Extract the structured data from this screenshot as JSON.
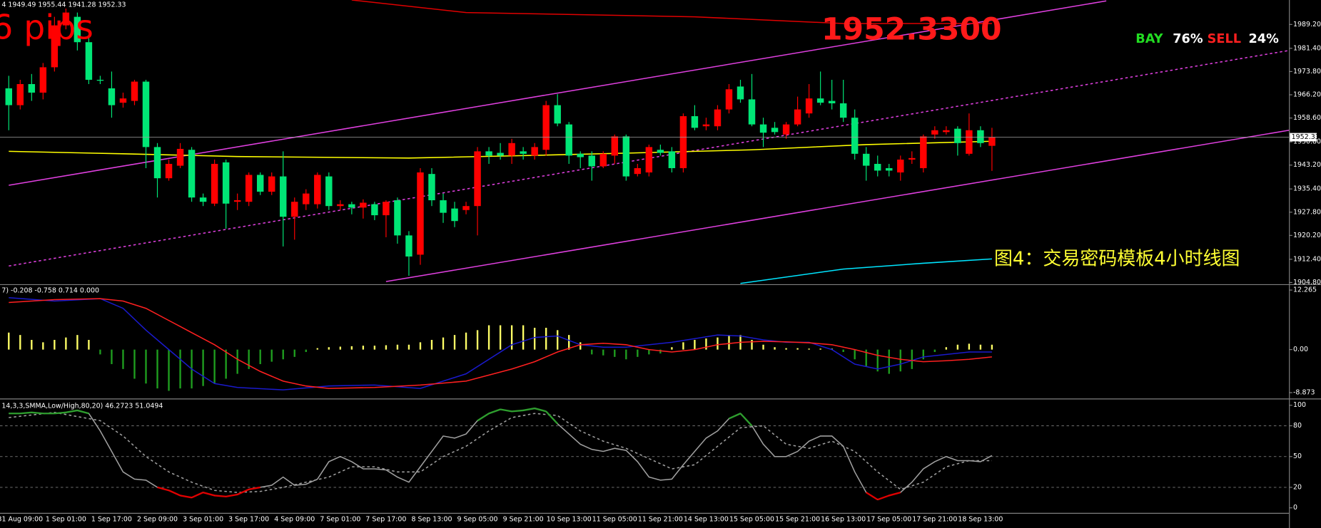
{
  "chart_data": [
    {
      "type": "candlestick",
      "header": "4 1949.49 1955.44 1941.28 1952.33",
      "pips": "6 pips",
      "price_banner": "1952.3300",
      "sentiment": {
        "buy_label": "BAY",
        "buy": "76%",
        "sell_label": "SELL",
        "sell": "24%"
      },
      "caption": "图4：交易密码模板4小时线图",
      "categories": [
        null,
        "31 Aug 09:00",
        null,
        null,
        null,
        "1 Sep 01:00",
        null,
        null,
        null,
        "1 Sep 17:00",
        null,
        null,
        null,
        "2 Sep 09:00",
        null,
        null,
        null,
        "3 Sep 01:00",
        null,
        null,
        null,
        "3 Sep 17:00",
        null,
        null,
        null,
        "4 Sep 09:00",
        null,
        null,
        null,
        "7 Sep 01:00",
        null,
        null,
        null,
        "7 Sep 17:00",
        null,
        null,
        null,
        "8 Sep 13:00",
        null,
        null,
        null,
        "9 Sep 05:00",
        null,
        null,
        null,
        "9 Sep 21:00",
        null,
        null,
        null,
        "10 Sep 13:00",
        null,
        null,
        null,
        "11 Sep 05:00",
        null,
        null,
        null,
        "11 Sep 21:00",
        null,
        null,
        null,
        "14 Sep 13:00",
        null,
        null,
        null,
        "15 Sep 05:00",
        null,
        null,
        null,
        "15 Sep 21:00",
        null,
        null,
        null,
        "16 Sep 13:00",
        null,
        null,
        null,
        "17 Sep 05:00",
        null,
        null,
        null,
        "17 Sep 21:00",
        null,
        null,
        null,
        "18 Sep 13:00",
        null
      ],
      "open": [
        1968.3,
        1962.8,
        1969.7,
        1966.9,
        1975.2,
        1988.9,
        1991.7,
        1983.4,
        1971.1,
        1968.3,
        1963.6,
        1964.2,
        1970.5,
        1949.1,
        1938.9,
        1943.0,
        1948.2,
        1932.6,
        1930.6,
        1944.1,
        1931.2,
        1931.2,
        1940.0,
        1934.5,
        1939.5,
        1926.3,
        1930.4,
        1930.4,
        1939.5,
        1929.8,
        1930.4,
        1929.3,
        1930.4,
        1926.8,
        1931.7,
        1920.2,
        1913.9,
        1940.3,
        1931.7,
        1929.0,
        1928.5,
        1929.8,
        1947.7,
        1947.2,
        1946.3,
        1947.7,
        1946.3,
        1948.2,
        1962.8,
        1956.5,
        1946.9,
        1946.3,
        1942.8,
        1946.3,
        1952.6,
        1940.3,
        1940.8,
        1948.2,
        1947.7,
        1942.2,
        1959.2,
        1955.9,
        1955.9,
        1961.4,
        1968.9,
        1964.7,
        1956.5,
        1955.4,
        1953.2,
        1956.5,
        1960.1,
        1965.0,
        1964.2,
        1963.4,
        1958.7,
        1946.9,
        1943.6,
        1942.2,
        1940.8,
        1945.0,
        1942.2,
        1953.2,
        1954.0,
        1955.1,
        1946.9,
        1954.6,
        1949.5
      ],
      "high": [
        1972.4,
        1971.1,
        1973.0,
        1976.6,
        1991.7,
        1994.4,
        1993.1,
        1984.8,
        1972.4,
        1973.8,
        1966.9,
        1971.1,
        1971.1,
        1950.4,
        1945.0,
        1950.4,
        1949.1,
        1933.9,
        1945.0,
        1945.0,
        1933.9,
        1940.8,
        1940.8,
        1940.8,
        1947.7,
        1932.6,
        1935.3,
        1940.8,
        1940.8,
        1931.7,
        1931.2,
        1932.0,
        1931.2,
        1931.7,
        1932.6,
        1921.6,
        1942.2,
        1942.2,
        1933.9,
        1931.2,
        1931.2,
        1949.1,
        1949.1,
        1950.4,
        1951.8,
        1949.1,
        1950.4,
        1964.2,
        1966.4,
        1957.3,
        1947.7,
        1947.7,
        1947.7,
        1953.2,
        1953.2,
        1943.6,
        1949.9,
        1949.9,
        1949.1,
        1960.1,
        1962.8,
        1958.7,
        1962.8,
        1969.7,
        1971.1,
        1973.0,
        1958.7,
        1957.3,
        1957.3,
        1965.6,
        1969.7,
        1973.8,
        1971.1,
        1971.1,
        1961.4,
        1949.1,
        1946.3,
        1943.6,
        1946.3,
        1947.7,
        1953.2,
        1955.9,
        1955.9,
        1955.9,
        1960.1,
        1955.9,
        1955.4
      ],
      "low": [
        1954.6,
        1961.4,
        1964.2,
        1964.7,
        1973.8,
        1987.6,
        1980.7,
        1969.7,
        1969.7,
        1958.7,
        1962.0,
        1962.8,
        1942.2,
        1932.6,
        1938.1,
        1942.2,
        1931.2,
        1929.8,
        1929.8,
        1922.4,
        1928.5,
        1929.8,
        1933.4,
        1933.4,
        1916.6,
        1918.8,
        1928.5,
        1929.0,
        1928.5,
        1928.5,
        1927.1,
        1925.7,
        1925.2,
        1919.6,
        1917.5,
        1907.0,
        1910.6,
        1929.8,
        1924.3,
        1922.9,
        1927.1,
        1920.2,
        1943.6,
        1945.0,
        1943.6,
        1945.0,
        1945.0,
        1946.3,
        1955.9,
        1943.6,
        1942.2,
        1938.1,
        1942.2,
        1943.6,
        1938.1,
        1939.5,
        1939.5,
        1946.3,
        1940.8,
        1940.8,
        1954.6,
        1954.6,
        1954.6,
        1960.1,
        1963.6,
        1955.9,
        1949.1,
        1953.2,
        1951.8,
        1955.9,
        1958.7,
        1962.8,
        1961.4,
        1957.3,
        1945.0,
        1938.1,
        1939.5,
        1939.5,
        1938.1,
        1943.6,
        1940.8,
        1951.8,
        1953.2,
        1946.3,
        1946.3,
        1949.1,
        1941.3
      ],
      "close": [
        1962.8,
        1969.7,
        1966.9,
        1975.2,
        1988.9,
        1993.1,
        1983.4,
        1971.1,
        1970.8,
        1962.8,
        1965.0,
        1970.5,
        1949.1,
        1938.9,
        1943.6,
        1948.5,
        1932.6,
        1931.2,
        1943.6,
        1930.6,
        1931.7,
        1940.0,
        1934.5,
        1939.5,
        1926.3,
        1931.2,
        1933.9,
        1940.0,
        1929.8,
        1930.4,
        1929.3,
        1930.9,
        1926.8,
        1931.2,
        1920.2,
        1913.3,
        1940.8,
        1931.7,
        1927.6,
        1924.9,
        1929.8,
        1947.7,
        1946.3,
        1946.3,
        1950.4,
        1946.9,
        1949.1,
        1962.8,
        1956.8,
        1946.3,
        1945.8,
        1942.8,
        1946.9,
        1952.6,
        1939.5,
        1942.2,
        1949.1,
        1947.2,
        1942.2,
        1959.2,
        1955.4,
        1956.5,
        1961.4,
        1968.0,
        1964.7,
        1956.5,
        1953.8,
        1954.0,
        1956.5,
        1961.4,
        1965.0,
        1963.6,
        1963.4,
        1958.7,
        1946.9,
        1943.0,
        1941.4,
        1941.4,
        1945.0,
        1945.5,
        1952.6,
        1954.6,
        1954.6,
        1950.4,
        1954.6,
        1950.4,
        1952.3
      ],
      "up_color": "#ff0000",
      "down_color": "#00e676",
      "ylim": [
        1904.25,
        1997.2
      ],
      "yticks": [
        {
          "value": 1904.8,
          "label": "1904.80"
        },
        {
          "value": 1912.4,
          "label": "1912.40"
        },
        {
          "value": 1920.2,
          "label": "1920.20"
        },
        {
          "value": 1927.8,
          "label": "1927.80"
        },
        {
          "value": 1935.4,
          "label": "1935.40"
        },
        {
          "value": 1943.2,
          "label": "1943.20"
        },
        {
          "value": 1950.8,
          "label": "1950.80"
        },
        {
          "value": 1958.6,
          "label": "1958.60"
        },
        {
          "value": 1966.2,
          "label": "1966.20"
        },
        {
          "value": 1973.8,
          "label": "1973.80"
        },
        {
          "value": 1981.4,
          "label": "1981.40"
        },
        {
          "value": 1989.2,
          "label": "1989.20"
        }
      ],
      "last_price": 1952.33,
      "lines": [
        {
          "x": [
            0,
            96
          ],
          "values": [
            1936.6,
            1996.9
          ],
          "color": "#e040e0",
          "style": "solid"
        },
        {
          "x": [
            33,
            112
          ],
          "values": [
            1905.1,
            1954.6
          ],
          "color": "#e040e0",
          "style": "solid"
        },
        {
          "x": [
            0,
            112
          ],
          "values": [
            1910.2,
            1980.7
          ],
          "color": "#e040e0",
          "style": "dashed"
        },
        {
          "x": [
            0,
            10,
            20,
            35,
            45,
            55,
            65,
            75,
            86
          ],
          "values": [
            1947.7,
            1946.9,
            1946.0,
            1945.5,
            1946.3,
            1947.2,
            1948.2,
            1949.9,
            1951.0
          ],
          "color": "#ffff00",
          "style": "solid"
        },
        {
          "x": [
            30,
            40,
            60,
            73,
            86
          ],
          "values": [
            1997.2,
            1993.1,
            1991.7,
            1989.5,
            1989.5
          ],
          "color": "#e00000",
          "style": "solid"
        },
        {
          "x": [
            64,
            73,
            80,
            86
          ],
          "values": [
            1904.5,
            1909.2,
            1911.1,
            1912.5
          ],
          "color": "#00e5ff",
          "style": "solid"
        }
      ]
    },
    {
      "type": "macd",
      "header": "7) -0.208 -0.758 0.714 0.000",
      "histogram": [
        3.5,
        3,
        2,
        1.5,
        2,
        2.5,
        3,
        2,
        -1,
        -3,
        -4,
        -6,
        -7,
        -8,
        -8.5,
        -8,
        -8,
        -7.5,
        -7,
        -6,
        -5,
        -4,
        -3,
        -2.5,
        -2,
        -1.5,
        -0.5,
        0.3,
        0.5,
        0.6,
        0.7,
        0.8,
        0.8,
        0.9,
        1,
        1,
        1.5,
        2,
        2.5,
        3,
        3.5,
        4,
        5,
        5,
        5,
        5,
        4.5,
        4.5,
        4,
        3,
        1.5,
        -1,
        -1.2,
        -1.5,
        -2,
        -1.5,
        -1,
        -0.8,
        0.5,
        1.5,
        2,
        2.3,
        2.5,
        3,
        3,
        2,
        1,
        0.5,
        0.3,
        0.3,
        0.2,
        0.2,
        0.2,
        -0.5,
        -2,
        -3.5,
        -4.5,
        -5,
        -4.5,
        -4,
        -2,
        -0.5,
        0.5,
        1,
        1.2,
        1,
        1
      ],
      "pos_color": "#ffff66",
      "neg_color": "#1f9e1f",
      "lines": [
        {
          "x": [
            0,
            4,
            8,
            10,
            12,
            14,
            16,
            18,
            20,
            24,
            28,
            32,
            36,
            40,
            44,
            46,
            48,
            50,
            52,
            54,
            58,
            62,
            64,
            66,
            68,
            70,
            72,
            74,
            76,
            78,
            80,
            84,
            86
          ],
          "values": [
            10.7,
            10.0,
            10.5,
            8.5,
            4,
            0,
            -4,
            -7,
            -7.8,
            -8.3,
            -7.5,
            -7.3,
            -8,
            -5,
            1,
            2.5,
            2.8,
            1.0,
            0.5,
            0.5,
            1.5,
            3,
            2.8,
            2,
            1.5,
            1.5,
            0,
            -3,
            -4,
            -3,
            -1.5,
            -0.5,
            -0.5
          ],
          "color": "#1a1acc",
          "style": "solid"
        },
        {
          "x": [
            0,
            4,
            8,
            10,
            12,
            14,
            16,
            18,
            20,
            22,
            24,
            26,
            28,
            32,
            36,
            40,
            44,
            46,
            48,
            50,
            52,
            54,
            56,
            58,
            60,
            62,
            64,
            66,
            68,
            70,
            72,
            74,
            76,
            78,
            80,
            82,
            84,
            86
          ],
          "values": [
            9.7,
            10.3,
            10.5,
            10.0,
            8.5,
            6,
            3.5,
            1,
            -2,
            -4.5,
            -6.5,
            -7.5,
            -8,
            -7.8,
            -7.3,
            -6.5,
            -4,
            -2.5,
            -0.5,
            1.0,
            1.3,
            1.0,
            0,
            -0.5,
            0,
            1.0,
            1.5,
            1.7,
            1.6,
            1.4,
            1,
            0,
            -1.2,
            -2,
            -2.5,
            -2.3,
            -2.0,
            -1.5
          ],
          "color": "#ff2020",
          "style": "solid"
        }
      ],
      "ylim": [
        -9.91,
        13.13
      ],
      "yticks": [
        12.265,
        {
          "value": 0,
          "label": "0.00"
        },
        -8.873
      ]
    },
    {
      "type": "stochastic",
      "header": "14,3,3,SMMA,Low/High,80,20) 46.2723 51.0494",
      "values": [
        92,
        92,
        93,
        92,
        92,
        93,
        95,
        92,
        75,
        55,
        35,
        28,
        27,
        20,
        17,
        12,
        10,
        15,
        12,
        11,
        13,
        18,
        20,
        22,
        30,
        22,
        23,
        28,
        45,
        50,
        45,
        38,
        38,
        37,
        30,
        25,
        40,
        55,
        70,
        68,
        72,
        85,
        92,
        96,
        94,
        95,
        97,
        94,
        82,
        72,
        62,
        57,
        55,
        58,
        56,
        45,
        30,
        27,
        28,
        42,
        55,
        68,
        75,
        87,
        92,
        80,
        62,
        50,
        50,
        55,
        65,
        70,
        70,
        60,
        35,
        15,
        8,
        12,
        15,
        25,
        38,
        45,
        50,
        46,
        46,
        45,
        51
      ],
      "color": "#a0a0a0",
      "high_color": "#2e9e2e",
      "low_color": "#e00000",
      "signal": {
        "x": [
          0,
          4,
          8,
          10,
          12,
          14,
          16,
          18,
          20,
          22,
          24,
          26,
          28,
          30,
          32,
          34,
          36,
          38,
          40,
          42,
          44,
          46,
          48,
          50,
          52,
          54,
          56,
          58,
          60,
          62,
          64,
          66,
          68,
          70,
          72,
          74,
          76,
          78,
          80,
          82,
          84,
          86
        ],
        "values": [
          88,
          93,
          85,
          70,
          50,
          35,
          25,
          17,
          15,
          16,
          20,
          25,
          30,
          40,
          40,
          35,
          35,
          50,
          60,
          75,
          88,
          92,
          90,
          75,
          65,
          58,
          48,
          38,
          42,
          60,
          78,
          80,
          62,
          58,
          65,
          55,
          35,
          18,
          25,
          40,
          46,
          46
        ],
        "color": "#a0a0a0",
        "style": "dashed"
      },
      "levels": [
        80,
        50,
        20
      ],
      "ylim": [
        -4.9,
        104.1
      ],
      "yticks": [
        100,
        80,
        50,
        20,
        0
      ]
    }
  ]
}
